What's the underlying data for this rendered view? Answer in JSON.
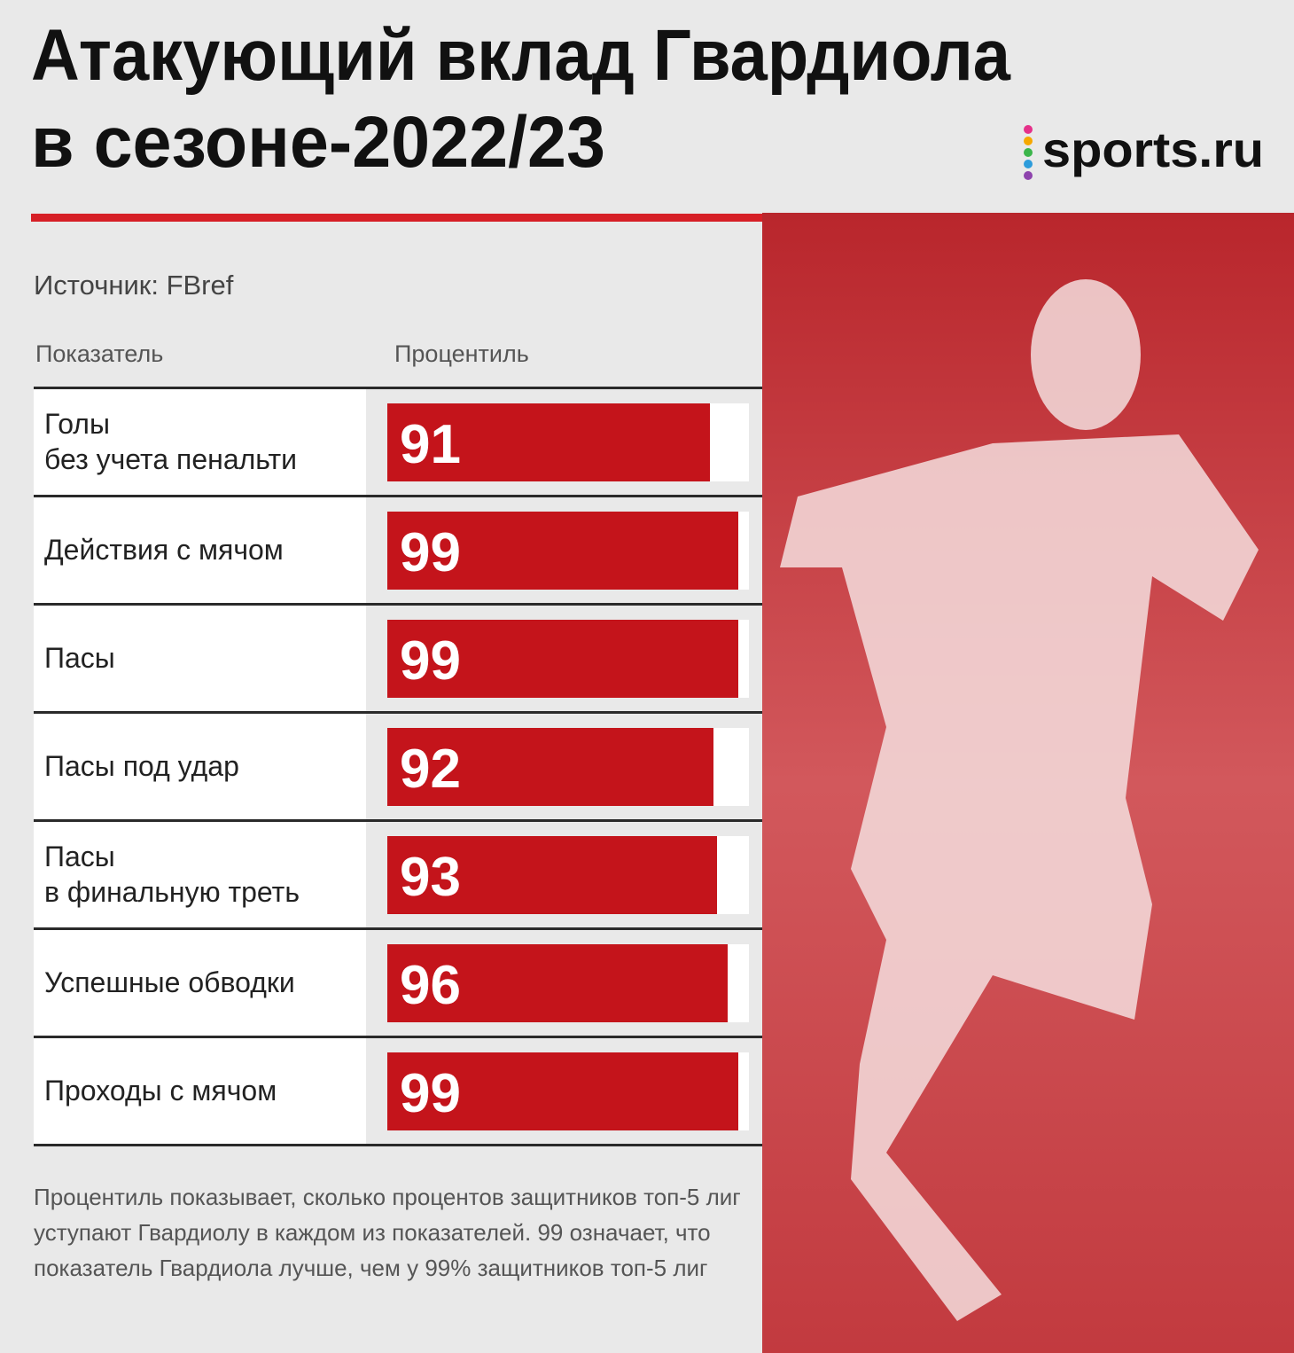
{
  "chart_data": {
    "type": "bar",
    "orientation": "horizontal",
    "title": [
      "Атакующий вклад Гвардиола",
      "в сезоне-2022/23"
    ],
    "logo": "sports.ru",
    "source": "Источник: FBref",
    "column_headers": [
      "Показатель",
      "Процентиль"
    ],
    "categories": [
      "Голы\nбез учета пенальти",
      "Действия с мячом",
      "Пасы",
      "Пасы под удар",
      "Пасы\nв финальную треть",
      "Успешные обводки",
      "Проходы с мячом"
    ],
    "values": [
      91,
      99,
      99,
      92,
      93,
      96,
      99
    ],
    "color": "#c4141b",
    "xlim": [
      0,
      100
    ],
    "footnote": "Процентиль показывает, сколько процентов защитников топ-5 лиг уступают Гвардиолу в каждом из показателей. 99 означает, что показатель Гвардиола лучше, чем у 99% защитников топ-5 лиг"
  }
}
